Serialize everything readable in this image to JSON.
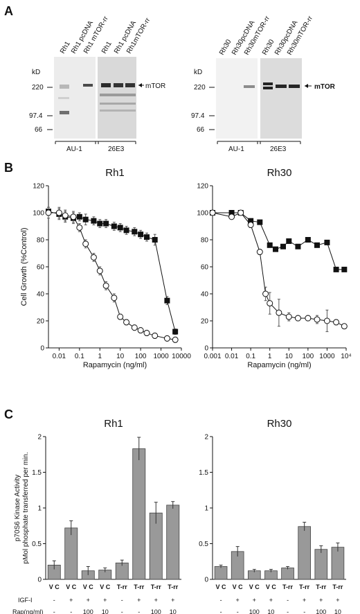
{
  "figure": {
    "panels": {
      "A": {
        "letter": "A",
        "left_blot": {
          "lanes": [
            "Rh1",
            "Rh1 pcDNA",
            "Rh1 mTOR-rr",
            "Rh1",
            "Rh1 pcDNA",
            "Rh1mTOR-rr"
          ],
          "kd_label": "kD",
          "markers": [
            "220",
            "97.4",
            "66"
          ],
          "band_label": "mTOR",
          "antibodies": [
            "AU-1",
            "26E3"
          ]
        },
        "right_blot": {
          "lanes": [
            "Rh30",
            "Rh30pcDNA",
            "Rh30mTOR-rr",
            "Rh30",
            "Rh30pcDNA",
            "Rh30mTOR-rr"
          ],
          "kd_label": "kD",
          "markers": [
            "220",
            "97.4",
            "66"
          ],
          "band_label": "mTOR",
          "antibodies": [
            "AU-1",
            "26E3"
          ]
        }
      },
      "B": {
        "letter": "B"
      },
      "C": {
        "letter": "C"
      }
    }
  },
  "chart_data": [
    {
      "id": "B-Rh1",
      "type": "line",
      "title": "Rh1",
      "xlabel": "Rapamycin (ng/ml)",
      "ylabel": "Cell Growth (%Control)",
      "xscale": "log",
      "xlim": [
        0.003,
        10000
      ],
      "ylim": [
        0,
        120
      ],
      "yticks": [
        0,
        20,
        40,
        60,
        80,
        100,
        120
      ],
      "xticks": [
        {
          "v": 0.01,
          "label": "0.01"
        },
        {
          "v": 0.1,
          "label": "0.1"
        },
        {
          "v": 1,
          "label": "1"
        },
        {
          "v": 10,
          "label": "10"
        },
        {
          "v": 100,
          "label": "100"
        },
        {
          "v": 1000,
          "label": "1000"
        },
        {
          "v": 10000,
          "label": "10000"
        }
      ],
      "series": [
        {
          "marker": "square-filled",
          "x": [
            0.003,
            0.01,
            0.02,
            0.05,
            0.1,
            0.2,
            0.5,
            1,
            2,
            5,
            10,
            20,
            50,
            100,
            200,
            500,
            2000,
            5000
          ],
          "y": [
            101,
            99,
            97,
            96,
            97,
            95,
            94,
            92,
            92,
            90,
            89,
            87,
            86,
            84,
            82,
            80,
            35,
            12
          ],
          "err": [
            3,
            4,
            4,
            4,
            3,
            4,
            3,
            3,
            3,
            3,
            3,
            3,
            3,
            3,
            3,
            4,
            3,
            2
          ]
        },
        {
          "marker": "circle-open",
          "x": [
            0.003,
            0.01,
            0.02,
            0.05,
            0.1,
            0.2,
            0.5,
            1,
            2,
            5,
            10,
            20,
            50,
            100,
            200,
            500,
            2000,
            5000
          ],
          "y": [
            100,
            100,
            98,
            97,
            89,
            77,
            67,
            57,
            46,
            37,
            23,
            19,
            15,
            13,
            11,
            9,
            7,
            6
          ],
          "err": [
            4,
            4,
            4,
            4,
            3,
            3,
            3,
            3,
            3,
            3,
            2,
            2,
            2,
            2,
            2,
            2,
            2,
            2
          ]
        }
      ]
    },
    {
      "id": "B-Rh30",
      "type": "line",
      "title": "Rh30",
      "xlabel": "Rapamycin (ng/ml)",
      "ylabel": "",
      "xscale": "log",
      "xlim": [
        0.001,
        10000
      ],
      "ylim": [
        0,
        120
      ],
      "yticks": [
        0,
        20,
        40,
        60,
        80,
        100,
        120
      ],
      "xticks": [
        {
          "v": 0.001,
          "label": "0.001"
        },
        {
          "v": 0.01,
          "label": "0.01"
        },
        {
          "v": 0.1,
          "label": "0.1"
        },
        {
          "v": 1,
          "label": "1"
        },
        {
          "v": 10,
          "label": "10"
        },
        {
          "v": 100,
          "label": "100"
        },
        {
          "v": 1000,
          "label": "1000"
        },
        {
          "v": 10000,
          "label": "10⁴"
        }
      ],
      "series": [
        {
          "marker": "square-filled",
          "x": [
            0.001,
            0.01,
            0.03,
            0.1,
            0.3,
            1,
            2,
            5,
            10,
            30,
            100,
            300,
            1000,
            3000,
            8000
          ],
          "y": [
            100,
            100,
            100,
            94,
            93,
            76,
            73,
            75,
            79,
            75,
            80,
            76,
            78,
            58,
            58
          ],
          "err": [
            1,
            1,
            1,
            1,
            1,
            1,
            1,
            1,
            1,
            1,
            1,
            1,
            1,
            1,
            1
          ]
        },
        {
          "marker": "circle-open",
          "x": [
            0.001,
            0.01,
            0.03,
            0.1,
            0.3,
            0.6,
            1,
            3,
            10,
            30,
            100,
            300,
            1000,
            3000,
            8000
          ],
          "y": [
            100,
            97,
            100,
            91,
            71,
            40,
            33,
            26,
            23,
            22,
            22,
            21,
            20,
            19,
            16
          ],
          "err": [
            1,
            1,
            1,
            2,
            2,
            5,
            8,
            10,
            3,
            2,
            2,
            3,
            8,
            2,
            1
          ]
        }
      ]
    },
    {
      "id": "C-Rh1",
      "type": "bar",
      "title": "Rh1",
      "ylabel": "p70S6 Kinase Activity\npMol phosphate transferred per min.",
      "ylim": [
        0,
        2
      ],
      "yticks": [
        {
          "v": 0,
          "label": "0"
        },
        {
          "v": 0.5,
          "label": "0.5"
        },
        {
          "v": 1,
          "label": "1"
        },
        {
          "v": 1.5,
          "label": "1.5"
        },
        {
          "v": 2,
          "label": "2"
        }
      ],
      "categories": [
        "V C",
        "V C",
        "V C",
        "V C",
        "T-rr",
        "T-rr",
        "T-rr",
        "T-rr"
      ],
      "values": [
        0.2,
        0.72,
        0.12,
        0.13,
        0.23,
        1.83,
        0.93,
        1.04
      ],
      "errors": [
        0.06,
        0.1,
        0.06,
        0.03,
        0.04,
        0.16,
        0.15,
        0.05
      ],
      "row_labels": [
        "IGF-I",
        "Rap(ng/ml)"
      ],
      "igf": [
        "-",
        "+",
        "+",
        "+",
        "-",
        "+",
        "+",
        "+"
      ],
      "rap": [
        "-",
        "-",
        "100",
        "10",
        "-",
        "-",
        "100",
        "10"
      ]
    },
    {
      "id": "C-Rh30",
      "type": "bar",
      "title": "Rh30",
      "ylabel": "",
      "ylim": [
        0,
        2
      ],
      "yticks": [
        {
          "v": 0,
          "label": "0"
        },
        {
          "v": 0.5,
          "label": "0.5"
        },
        {
          "v": 1,
          "label": "1"
        },
        {
          "v": 1.5,
          "label": "1.5"
        },
        {
          "v": 2,
          "label": "2"
        }
      ],
      "categories": [
        "V C",
        "V C",
        "V C",
        "V C",
        "T-rr",
        "T-rr",
        "T-rr",
        "T-rr"
      ],
      "values": [
        0.18,
        0.39,
        0.12,
        0.12,
        0.16,
        0.74,
        0.42,
        0.45
      ],
      "errors": [
        0.02,
        0.07,
        0.02,
        0.02,
        0.02,
        0.06,
        0.05,
        0.06
      ],
      "igf": [
        "-",
        "+",
        "+",
        "+",
        "-",
        "+",
        "+",
        "+"
      ],
      "rap": [
        "-",
        "-",
        "100",
        "10",
        "-",
        "-",
        "100",
        "10"
      ]
    }
  ]
}
